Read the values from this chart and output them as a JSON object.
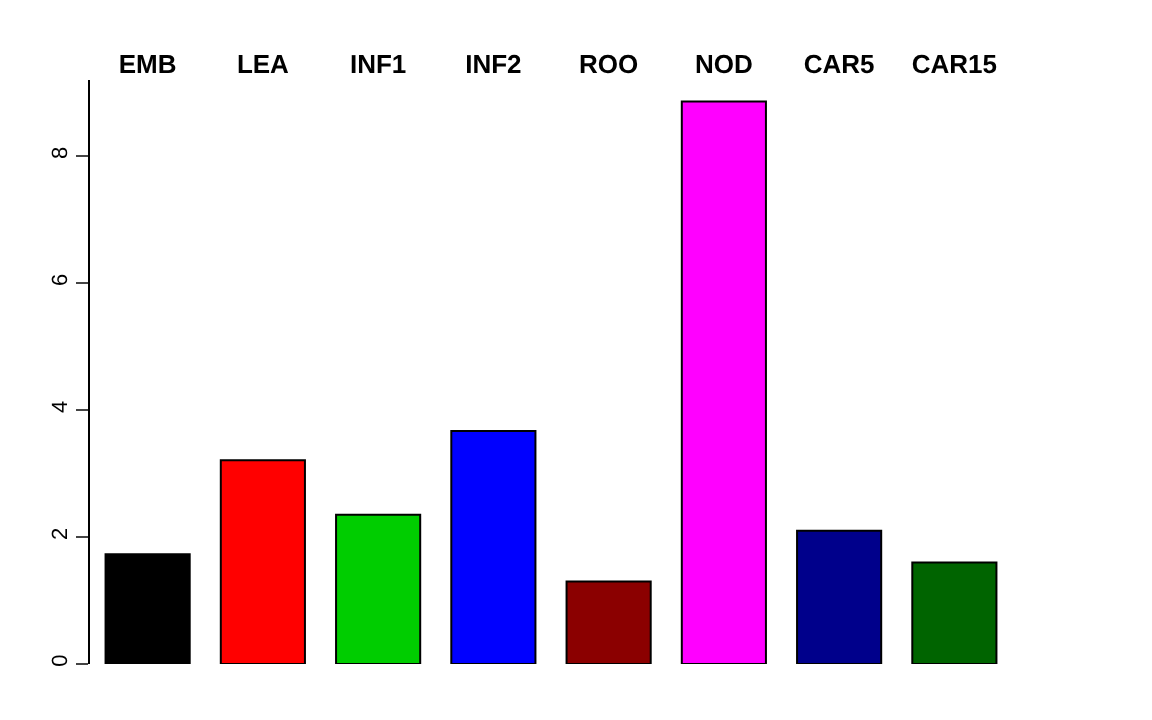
{
  "chart_data": {
    "type": "bar",
    "categories": [
      "EMB",
      "LEA",
      "INF1",
      "INF2",
      "ROO",
      "NOD",
      "CAR5",
      "CAR15"
    ],
    "values": [
      1.73,
      3.21,
      2.35,
      3.67,
      1.3,
      8.86,
      2.1,
      1.6
    ],
    "colors": [
      "#000000",
      "#ff0000",
      "#00cd00",
      "#0000ff",
      "#8b0000",
      "#ff00ff",
      "#00008b",
      "#006400"
    ],
    "ylim": [
      0,
      9.2
    ],
    "yticks": [
      0,
      2,
      4,
      6,
      8
    ]
  }
}
